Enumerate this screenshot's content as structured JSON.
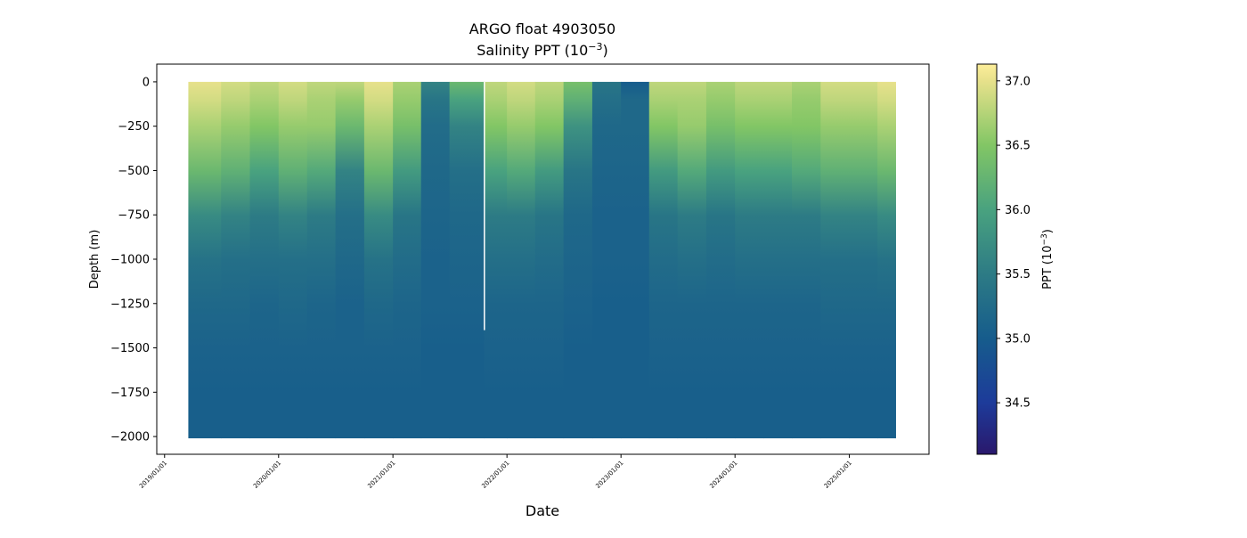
{
  "chart_data": {
    "type": "heatmap",
    "title_line1": "ARGO float 4903050",
    "title_line2_prefix": "Salinity PPT (10",
    "title_line2_exp": "−3",
    "title_line2_suffix": ")",
    "xlabel": "Date",
    "ylabel": "Depth (m)",
    "x_range": [
      "2018-12-07",
      "2025-09-13"
    ],
    "ylim": [
      -2100,
      100
    ],
    "x_ticks": [
      "2019/01/01",
      "2020/01/01",
      "2021/01/01",
      "2022/01/01",
      "2023/01/01",
      "2024/01/01",
      "2025/01/01"
    ],
    "y_ticks": [
      0,
      -250,
      -500,
      -750,
      -1000,
      -1250,
      -1500,
      -1750,
      -2000
    ],
    "y_tick_labels": [
      "0",
      "−250",
      "−500",
      "−750",
      "−1000",
      "−1250",
      "−1500",
      "−1750",
      "−2000"
    ],
    "grid": false,
    "colormap": "haline",
    "colormap_stops": [
      {
        "v": 34.1,
        "c": "#2a186c"
      },
      {
        "v": 34.5,
        "c": "#1d3b9a"
      },
      {
        "v": 35.0,
        "c": "#165c8c"
      },
      {
        "v": 35.5,
        "c": "#2d7b85"
      },
      {
        "v": 36.0,
        "c": "#49a27f"
      },
      {
        "v": 36.5,
        "c": "#82c665"
      },
      {
        "v": 37.0,
        "c": "#e7e18b"
      },
      {
        "v": 37.13,
        "c": "#fdee9a"
      }
    ],
    "colorbar": {
      "label_prefix": "PPT (10",
      "label_exp": "−3",
      "label_suffix": ")",
      "range": [
        34.1,
        37.13
      ],
      "ticks": [
        34.5,
        35.0,
        35.5,
        36.0,
        36.5,
        37.0
      ],
      "tick_labels": [
        "34.5",
        "35.0",
        "35.5",
        "36.0",
        "36.5",
        "37.0"
      ]
    },
    "depth_levels": [
      0,
      -100,
      -250,
      -500,
      -750,
      -1000,
      -1250,
      -1500,
      -1750,
      -2000
    ],
    "profiles": [
      {
        "date": "2019-03-18",
        "values": [
          37.0,
          36.9,
          36.7,
          36.3,
          35.7,
          35.35,
          35.2,
          35.1,
          35.05,
          35.05
        ]
      },
      {
        "date": "2019-07-01",
        "values": [
          36.9,
          36.8,
          36.6,
          36.2,
          35.6,
          35.3,
          35.2,
          35.1,
          35.05,
          35.05
        ]
      },
      {
        "date": "2019-10-01",
        "values": [
          36.8,
          36.7,
          36.5,
          36.0,
          35.5,
          35.3,
          35.15,
          35.1,
          35.05,
          35.05
        ]
      },
      {
        "date": "2020-01-01",
        "values": [
          36.9,
          36.8,
          36.6,
          36.2,
          35.6,
          35.3,
          35.2,
          35.1,
          35.05,
          35.05
        ]
      },
      {
        "date": "2020-04-01",
        "values": [
          36.8,
          36.7,
          36.6,
          36.1,
          35.5,
          35.3,
          35.15,
          35.1,
          35.05,
          35.05
        ]
      },
      {
        "date": "2020-07-01",
        "values": [
          36.8,
          36.6,
          36.3,
          35.6,
          35.3,
          35.2,
          35.1,
          35.1,
          35.05,
          35.05
        ]
      },
      {
        "date": "2020-10-01",
        "values": [
          37.0,
          36.9,
          36.7,
          36.3,
          35.7,
          35.35,
          35.2,
          35.1,
          35.05,
          35.05
        ]
      },
      {
        "date": "2021-01-01",
        "values": [
          36.7,
          36.6,
          36.4,
          35.9,
          35.4,
          35.25,
          35.15,
          35.1,
          35.05,
          35.05
        ]
      },
      {
        "date": "2021-04-01",
        "values": [
          35.6,
          35.4,
          35.25,
          35.2,
          35.15,
          35.1,
          35.1,
          35.05,
          35.05,
          35.05
        ]
      },
      {
        "date": "2021-07-01",
        "values": [
          36.3,
          36.0,
          35.6,
          35.3,
          35.2,
          35.15,
          35.1,
          35.05,
          35.05,
          35.05
        ]
      },
      {
        "date": "2021-10-20",
        "values": [
          36.8,
          36.7,
          36.5,
          36.0,
          35.5,
          35.3,
          35.15,
          35.1,
          35.05,
          35.05
        ]
      },
      {
        "date": "2022-01-01",
        "values": [
          36.9,
          36.8,
          36.6,
          36.1,
          35.5,
          35.3,
          35.15,
          35.1,
          35.05,
          35.05
        ]
      },
      {
        "date": "2022-04-01",
        "values": [
          36.8,
          36.7,
          36.5,
          35.9,
          35.4,
          35.25,
          35.15,
          35.1,
          35.05,
          35.05
        ]
      },
      {
        "date": "2022-07-01",
        "values": [
          36.4,
          36.2,
          35.8,
          35.4,
          35.2,
          35.15,
          35.1,
          35.05,
          35.05,
          35.05
        ]
      },
      {
        "date": "2022-10-01",
        "values": [
          35.4,
          35.3,
          35.2,
          35.15,
          35.1,
          35.1,
          35.05,
          35.05,
          35.05,
          35.05
        ]
      },
      {
        "date": "2023-01-01",
        "values": [
          35.0,
          35.2,
          35.2,
          35.15,
          35.1,
          35.1,
          35.05,
          35.05,
          35.05,
          35.05
        ]
      },
      {
        "date": "2023-04-01",
        "values": [
          36.8,
          36.7,
          36.5,
          35.9,
          35.4,
          35.25,
          35.15,
          35.1,
          35.05,
          35.05
        ]
      },
      {
        "date": "2023-07-01",
        "values": [
          36.8,
          36.7,
          36.6,
          36.1,
          35.5,
          35.3,
          35.15,
          35.1,
          35.05,
          35.05
        ]
      },
      {
        "date": "2023-10-01",
        "values": [
          36.7,
          36.6,
          36.4,
          35.9,
          35.4,
          35.25,
          35.15,
          35.1,
          35.05,
          35.05
        ]
      },
      {
        "date": "2024-01-01",
        "values": [
          36.8,
          36.7,
          36.5,
          36.0,
          35.5,
          35.3,
          35.15,
          35.1,
          35.05,
          35.05
        ]
      },
      {
        "date": "2024-04-01",
        "values": [
          36.8,
          36.7,
          36.5,
          36.0,
          35.5,
          35.3,
          35.15,
          35.1,
          35.05,
          35.05
        ]
      },
      {
        "date": "2024-07-01",
        "values": [
          36.7,
          36.6,
          36.5,
          36.1,
          35.5,
          35.3,
          35.15,
          35.1,
          35.05,
          35.05
        ]
      },
      {
        "date": "2024-10-01",
        "values": [
          36.9,
          36.8,
          36.6,
          36.2,
          35.6,
          35.3,
          35.2,
          35.1,
          35.05,
          35.05
        ]
      },
      {
        "date": "2025-01-01",
        "values": [
          36.9,
          36.8,
          36.6,
          36.2,
          35.6,
          35.3,
          35.2,
          35.1,
          35.05,
          35.05
        ]
      },
      {
        "date": "2025-04-01",
        "values": [
          37.0,
          36.9,
          36.7,
          36.3,
          35.7,
          35.35,
          35.2,
          35.1,
          35.05,
          35.05
        ]
      }
    ],
    "data_end_date": "2025-05-29",
    "missing_profile": {
      "date": "2021-10-20",
      "depth_range": [
        0,
        -1400
      ]
    }
  }
}
